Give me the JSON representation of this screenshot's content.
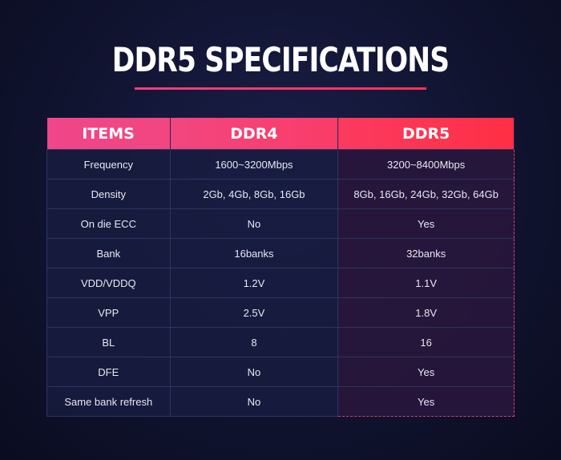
{
  "header": {
    "title": "DDR5 SPECIFICATIONS"
  },
  "table": {
    "headers": [
      "ITEMS",
      "DDR4",
      "DDR5"
    ],
    "rows": [
      [
        "Frequency",
        "1600~3200Mbps",
        "3200~8400Mbps"
      ],
      [
        "Density",
        "2Gb, 4Gb, 8Gb, 16Gb",
        "8Gb, 16Gb, 24Gb, 32Gb, 64Gb"
      ],
      [
        "On die ECC",
        "No",
        "Yes"
      ],
      [
        "Bank",
        "16banks",
        "32banks"
      ],
      [
        "VDD/VDDQ",
        "1.2V",
        "1.1V"
      ],
      [
        "VPP",
        "2.5V",
        "1.8V"
      ],
      [
        "BL",
        "8",
        "16"
      ],
      [
        "DFE",
        "No",
        "Yes"
      ],
      [
        "Same bank refresh",
        "No",
        "Yes"
      ]
    ]
  }
}
